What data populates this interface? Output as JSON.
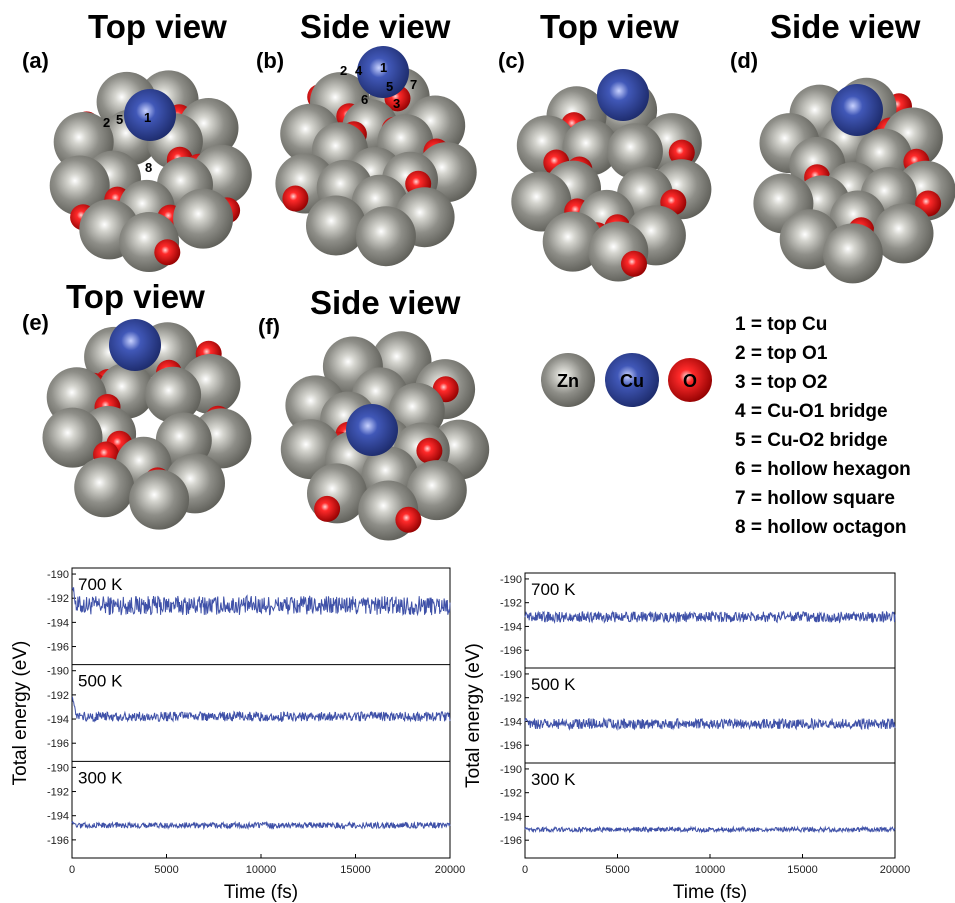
{
  "structures": {
    "panels": [
      {
        "label": "(a)",
        "title": "Top view"
      },
      {
        "label": "(b)",
        "title": "Side view"
      },
      {
        "label": "(c)",
        "title": "Top view"
      },
      {
        "label": "(d)",
        "title": "Side view"
      },
      {
        "label": "(e)",
        "title": "Top view"
      },
      {
        "label": "(f)",
        "title": "Side view"
      }
    ],
    "site_marks_a": [
      "2",
      "5",
      "1",
      "8"
    ],
    "site_marks_b": [
      "2",
      "4",
      "1",
      "5",
      "7",
      "6",
      "3"
    ],
    "atoms": [
      {
        "symbol": "Zn",
        "color": "#8c8c86"
      },
      {
        "symbol": "Cu",
        "color": "#3b4fa8"
      },
      {
        "symbol": "O",
        "color": "#e01010"
      }
    ],
    "site_legend": [
      "1 = top Cu",
      "2 = top O1",
      "3 = top O2",
      "4 = Cu-O1 bridge",
      "5 = Cu-O2 bridge",
      "6 = hollow hexagon",
      "7 = hollow square",
      "8 = hollow octagon"
    ]
  },
  "chart_data": [
    {
      "type": "line",
      "xlabel": "Time (fs)",
      "ylabel": "Total energy (eV)",
      "xlim": [
        0,
        20000
      ],
      "xticks": [
        0,
        5000,
        10000,
        15000,
        20000
      ],
      "color": "#3f51a8",
      "panels": [
        {
          "label": "700 K",
          "ylim": [
            -197.5,
            -189.5
          ],
          "yticks": [
            -190,
            -192,
            -194,
            -196
          ],
          "mean": -192.6,
          "amplitude": 0.8,
          "initial": -190.8
        },
        {
          "label": "500 K",
          "ylim": [
            -197.5,
            -189.5
          ],
          "yticks": [
            -190,
            -192,
            -194,
            -196
          ],
          "mean": -193.8,
          "amplitude": 0.4,
          "initial": -192.0
        },
        {
          "label": "300 K",
          "ylim": [
            -197.5,
            -189.5
          ],
          "yticks": [
            -190,
            -192,
            -194,
            -196
          ],
          "mean": -194.8,
          "amplitude": 0.25,
          "initial": -194.5
        }
      ]
    },
    {
      "type": "line",
      "xlabel": "Time (fs)",
      "ylabel": "Total energy (eV)",
      "xlim": [
        0,
        20000
      ],
      "xticks": [
        0,
        5000,
        10000,
        15000,
        20000
      ],
      "color": "#3f51a8",
      "panels": [
        {
          "label": "700 K",
          "ylim": [
            -197.5,
            -189.5
          ],
          "yticks": [
            -190,
            -192,
            -194,
            -196
          ],
          "mean": -193.2,
          "amplitude": 0.45,
          "initial": -193.0
        },
        {
          "label": "500 K",
          "ylim": [
            -197.5,
            -189.5
          ],
          "yticks": [
            -190,
            -192,
            -194,
            -196
          ],
          "mean": -194.2,
          "amplitude": 0.45,
          "initial": -193.8
        },
        {
          "label": "300 K",
          "ylim": [
            -197.5,
            -189.5
          ],
          "yticks": [
            -190,
            -192,
            -194,
            -196
          ],
          "mean": -195.1,
          "amplitude": 0.2,
          "initial": -195.0
        }
      ]
    }
  ]
}
